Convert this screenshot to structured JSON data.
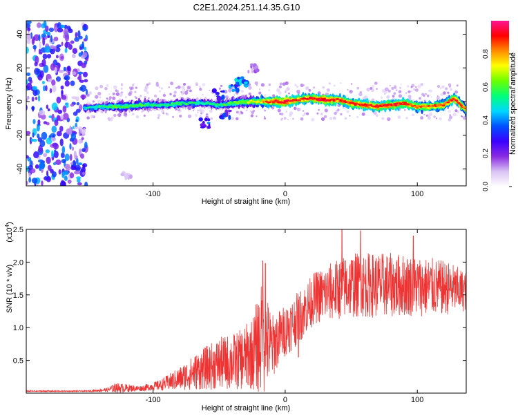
{
  "figure": {
    "title": "C2E1.2024.251.14.35.G10"
  },
  "chart_data": [
    {
      "type": "heatmap",
      "xlabel": "Height of straight line (km)",
      "ylabel": "Frequency (Hz)",
      "xlim": [
        -196,
        137
      ],
      "ylim": [
        -50,
        48
      ],
      "x_ticks": [
        -100,
        0,
        100
      ],
      "y_ticks": [
        -40,
        -20,
        0,
        20,
        40
      ],
      "colorbar": {
        "label": "Normalized spectral amplitude",
        "range": [
          0,
          1
        ],
        "ticks": [
          0.0,
          0.2,
          0.4,
          0.6,
          0.8
        ],
        "colors": [
          "#ffffff",
          "#d9c2f5",
          "#8a2be2",
          "#3a00ff",
          "#0050ff",
          "#00d8ff",
          "#00ff7a",
          "#6aff00",
          "#ffff00",
          "#ff8c00",
          "#ff0000",
          "#ff1493"
        ]
      },
      "ridge": [
        {
          "x": -150,
          "y": -4,
          "amp": 0.45
        },
        {
          "x": -140,
          "y": -3,
          "amp": 0.5
        },
        {
          "x": -130,
          "y": -3,
          "amp": 0.55
        },
        {
          "x": -120,
          "y": -3,
          "amp": 0.55
        },
        {
          "x": -110,
          "y": -2,
          "amp": 0.55
        },
        {
          "x": -100,
          "y": -2,
          "amp": 0.5
        },
        {
          "x": -90,
          "y": -2,
          "amp": 0.5
        },
        {
          "x": -80,
          "y": -1,
          "amp": 0.5
        },
        {
          "x": -70,
          "y": -1,
          "amp": 0.5
        },
        {
          "x": -60,
          "y": -1,
          "amp": 0.5
        },
        {
          "x": -50,
          "y": -2,
          "amp": 0.5
        },
        {
          "x": -40,
          "y": -1,
          "amp": 0.55
        },
        {
          "x": -30,
          "y": 0,
          "amp": 0.6
        },
        {
          "x": -20,
          "y": 0,
          "amp": 0.7
        },
        {
          "x": -10,
          "y": 0,
          "amp": 0.85
        },
        {
          "x": 0,
          "y": 0,
          "amp": 0.9
        },
        {
          "x": 10,
          "y": 1,
          "amp": 0.85
        },
        {
          "x": 20,
          "y": 2,
          "amp": 0.85
        },
        {
          "x": 30,
          "y": 1,
          "amp": 0.9
        },
        {
          "x": 40,
          "y": 1,
          "amp": 0.85
        },
        {
          "x": 50,
          "y": -1,
          "amp": 0.85
        },
        {
          "x": 60,
          "y": -2,
          "amp": 0.85
        },
        {
          "x": 70,
          "y": -3,
          "amp": 0.85
        },
        {
          "x": 80,
          "y": -2,
          "amp": 0.85
        },
        {
          "x": 90,
          "y": -1,
          "amp": 0.85
        },
        {
          "x": 100,
          "y": -3,
          "amp": 0.8
        },
        {
          "x": 110,
          "y": -3,
          "amp": 0.8
        },
        {
          "x": 120,
          "y": -2,
          "amp": 0.8
        },
        {
          "x": 128,
          "y": 2,
          "amp": 0.85
        },
        {
          "x": 137,
          "y": -5,
          "amp": 0.75
        }
      ],
      "features": [
        {
          "x": -38,
          "y": 8,
          "amp": 0.4
        },
        {
          "x": -33,
          "y": 12,
          "amp": 0.45
        },
        {
          "x": -50,
          "y": 4,
          "amp": 0.35
        },
        {
          "x": -60,
          "y": -13,
          "amp": 0.35
        },
        {
          "x": -45,
          "y": -8,
          "amp": 0.3
        },
        {
          "x": -25,
          "y": 20,
          "amp": 0.15
        },
        {
          "x": -120,
          "y": -45,
          "amp": 0.1
        }
      ],
      "noise_region": {
        "x_range": [
          -196,
          -150
        ],
        "y_range": [
          -50,
          48
        ],
        "amp_range": [
          0.08,
          0.45
        ]
      }
    },
    {
      "type": "line",
      "xlabel": "Height of straight line (km)",
      "ylabel": "SNR (10 * v/v)",
      "y_multiplier": "(x10",
      "y_multiplier_exp": "4",
      "xlim": [
        -196,
        137
      ],
      "ylim": [
        0,
        2.5
      ],
      "x_ticks": [
        -100,
        0,
        100
      ],
      "y_ticks": [
        0.5,
        1.0,
        1.5,
        2.0,
        2.5
      ],
      "y_tick_labels": [
        "0.5",
        "1.0",
        "1.5",
        "2.0",
        "2.5"
      ],
      "color": "#ee3333",
      "envelope": [
        {
          "x": -196,
          "mean": 0.03,
          "amp": 0.01
        },
        {
          "x": -150,
          "mean": 0.03,
          "amp": 0.01
        },
        {
          "x": -135,
          "mean": 0.05,
          "amp": 0.03
        },
        {
          "x": -128,
          "mean": 0.08,
          "amp": 0.08
        },
        {
          "x": -110,
          "mean": 0.07,
          "amp": 0.04
        },
        {
          "x": -95,
          "mean": 0.12,
          "amp": 0.08
        },
        {
          "x": -80,
          "mean": 0.22,
          "amp": 0.18
        },
        {
          "x": -65,
          "mean": 0.35,
          "amp": 0.3
        },
        {
          "x": -50,
          "mean": 0.45,
          "amp": 0.4
        },
        {
          "x": -35,
          "mean": 0.5,
          "amp": 0.45
        },
        {
          "x": -25,
          "mean": 0.6,
          "amp": 0.55
        },
        {
          "x": -17,
          "mean": 0.85,
          "amp": 0.9
        },
        {
          "x": -10,
          "mean": 0.7,
          "amp": 0.5
        },
        {
          "x": -3,
          "mean": 0.9,
          "amp": 0.4
        },
        {
          "x": 5,
          "mean": 1.05,
          "amp": 0.4
        },
        {
          "x": 12,
          "mean": 1.2,
          "amp": 0.4
        },
        {
          "x": 22,
          "mean": 1.45,
          "amp": 0.4
        },
        {
          "x": 35,
          "mean": 1.55,
          "amp": 0.45
        },
        {
          "x": 50,
          "mean": 1.65,
          "amp": 0.5
        },
        {
          "x": 70,
          "mean": 1.65,
          "amp": 0.5
        },
        {
          "x": 90,
          "mean": 1.65,
          "amp": 0.48
        },
        {
          "x": 110,
          "mean": 1.62,
          "amp": 0.45
        },
        {
          "x": 125,
          "mean": 1.6,
          "amp": 0.4
        },
        {
          "x": 137,
          "mean": 1.55,
          "amp": 0.3
        }
      ],
      "spikes": [
        {
          "x": -128,
          "y": 0.13
        },
        {
          "x": -95,
          "y": 0.15
        },
        {
          "x": -17,
          "y": 2.02
        },
        {
          "x": -15,
          "y": 1.98
        },
        {
          "x": 43,
          "y": 2.5
        },
        {
          "x": 57,
          "y": 2.48
        },
        {
          "x": 97,
          "y": 2.4
        },
        {
          "x": 10,
          "y": 0.55
        }
      ]
    }
  ]
}
